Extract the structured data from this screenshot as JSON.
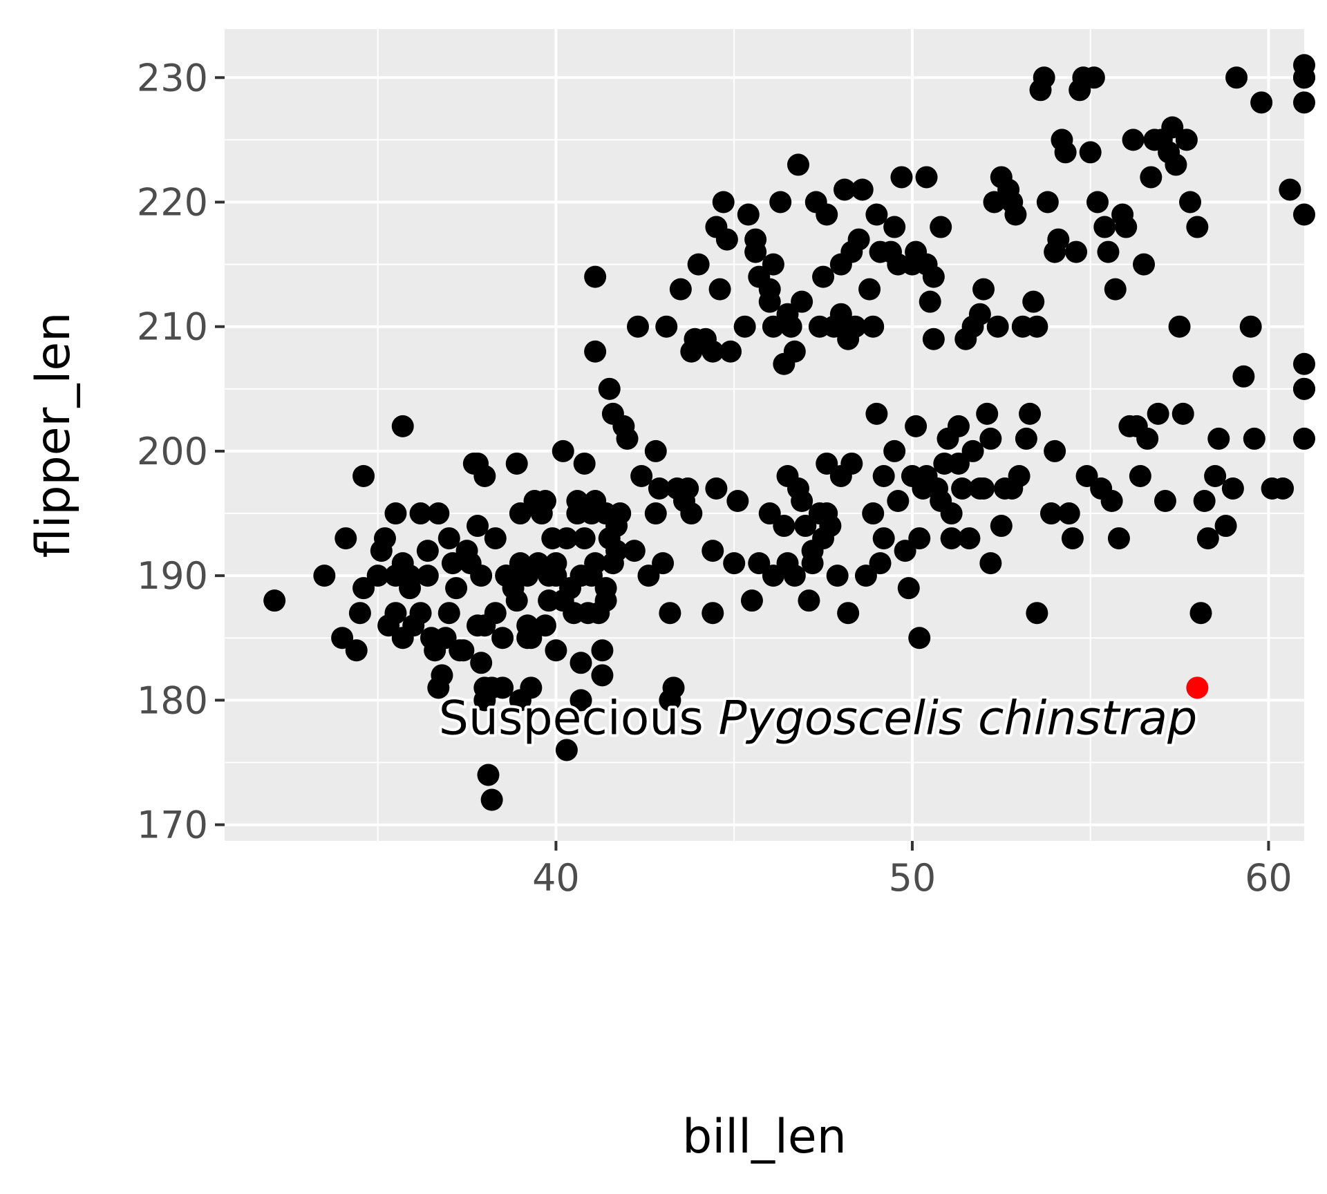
{
  "chart_data": {
    "type": "scatter",
    "title": "",
    "xlabel": "bill_len",
    "ylabel": "flipper_len",
    "xlim": [
      30.7,
      61.0
    ],
    "ylim": [
      168.7,
      233.9
    ],
    "x_ticks": [
      40,
      50,
      60
    ],
    "y_ticks": [
      170,
      180,
      190,
      200,
      210,
      220,
      230
    ],
    "grid": true,
    "background": "#ebebeb",
    "grid_color": "#ffffff",
    "point_color": "#000000",
    "highlight_color": "#ff0000",
    "points": [
      [
        32.1,
        188
      ],
      [
        33.5,
        190
      ],
      [
        34.0,
        185
      ],
      [
        34.1,
        193
      ],
      [
        34.4,
        184
      ],
      [
        34.5,
        187
      ],
      [
        34.6,
        198
      ],
      [
        34.6,
        189
      ],
      [
        35.0,
        190
      ],
      [
        35.1,
        192
      ],
      [
        35.2,
        193
      ],
      [
        35.3,
        186
      ],
      [
        35.5,
        187
      ],
      [
        35.5,
        195
      ],
      [
        35.7,
        185
      ],
      [
        35.7,
        202
      ],
      [
        35.7,
        191
      ],
      [
        35.9,
        189
      ],
      [
        35.9,
        190
      ],
      [
        36.0,
        186
      ],
      [
        36.2,
        187
      ],
      [
        36.2,
        195
      ],
      [
        36.4,
        190
      ],
      [
        36.6,
        184
      ],
      [
        36.7,
        195
      ],
      [
        36.7,
        181
      ],
      [
        36.8,
        182
      ],
      [
        36.9,
        185
      ],
      [
        37.0,
        187
      ],
      [
        37.0,
        193
      ],
      [
        37.2,
        189
      ],
      [
        37.3,
        184
      ],
      [
        37.5,
        192
      ],
      [
        37.6,
        191
      ],
      [
        37.7,
        199
      ],
      [
        37.8,
        199
      ],
      [
        37.8,
        194
      ],
      [
        37.8,
        186
      ],
      [
        37.9,
        183
      ],
      [
        37.9,
        190
      ],
      [
        38.0,
        198
      ],
      [
        38.0,
        181
      ],
      [
        38.0,
        180
      ],
      [
        38.1,
        174
      ],
      [
        38.2,
        172
      ],
      [
        38.3,
        193
      ],
      [
        38.3,
        187
      ],
      [
        38.5,
        185
      ],
      [
        38.5,
        181
      ],
      [
        38.6,
        190
      ],
      [
        38.8,
        189
      ],
      [
        38.9,
        199
      ],
      [
        38.9,
        188
      ],
      [
        39.0,
        191
      ],
      [
        39.0,
        195
      ],
      [
        39.0,
        180
      ],
      [
        39.2,
        185
      ],
      [
        39.2,
        186
      ],
      [
        39.2,
        190
      ],
      [
        39.3,
        181
      ],
      [
        39.4,
        196
      ],
      [
        39.5,
        191
      ],
      [
        39.6,
        195
      ],
      [
        39.7,
        186
      ],
      [
        39.7,
        196
      ],
      [
        39.8,
        188
      ],
      [
        39.9,
        193
      ],
      [
        40.0,
        191
      ],
      [
        40.0,
        190
      ],
      [
        40.0,
        184
      ],
      [
        40.2,
        188
      ],
      [
        40.2,
        200
      ],
      [
        40.3,
        193
      ],
      [
        40.3,
        176
      ],
      [
        40.5,
        187
      ],
      [
        40.6,
        195
      ],
      [
        40.6,
        196
      ],
      [
        40.7,
        183
      ],
      [
        40.7,
        180
      ],
      [
        40.8,
        199
      ],
      [
        40.8,
        193
      ],
      [
        40.9,
        187
      ],
      [
        41.0,
        195
      ],
      [
        41.0,
        190
      ],
      [
        41.1,
        191
      ],
      [
        41.1,
        208
      ],
      [
        41.1,
        214
      ],
      [
        41.2,
        187
      ],
      [
        41.3,
        184
      ],
      [
        41.3,
        182
      ],
      [
        41.4,
        189
      ],
      [
        41.4,
        188
      ],
      [
        41.5,
        205
      ],
      [
        41.5,
        193
      ],
      [
        41.6,
        203
      ],
      [
        41.7,
        194
      ],
      [
        41.7,
        192
      ],
      [
        41.8,
        195
      ],
      [
        41.9,
        202
      ],
      [
        42.0,
        201
      ],
      [
        42.2,
        192
      ],
      [
        42.3,
        210
      ],
      [
        42.4,
        198
      ],
      [
        42.6,
        190
      ],
      [
        42.8,
        200
      ],
      [
        42.8,
        195
      ],
      [
        42.9,
        197
      ],
      [
        43.0,
        191
      ],
      [
        43.1,
        210
      ],
      [
        43.2,
        187
      ],
      [
        43.2,
        180
      ],
      [
        43.3,
        181
      ],
      [
        43.4,
        197
      ],
      [
        43.5,
        213
      ],
      [
        43.6,
        196
      ],
      [
        43.7,
        197
      ],
      [
        43.8,
        195
      ],
      [
        43.8,
        208
      ],
      [
        43.9,
        209
      ],
      [
        44.0,
        215
      ],
      [
        44.2,
        209
      ],
      [
        44.4,
        187
      ],
      [
        44.4,
        192
      ],
      [
        44.4,
        208
      ],
      [
        44.5,
        197
      ],
      [
        44.5,
        218
      ],
      [
        44.6,
        213
      ],
      [
        44.7,
        220
      ],
      [
        44.8,
        217
      ],
      [
        44.9,
        208
      ],
      [
        45.1,
        196
      ],
      [
        45.3,
        210
      ],
      [
        45.4,
        219
      ],
      [
        45.6,
        216
      ],
      [
        45.6,
        217
      ],
      [
        45.7,
        214
      ],
      [
        46.0,
        212
      ],
      [
        46.0,
        213
      ],
      [
        46.1,
        210
      ],
      [
        46.1,
        215
      ],
      [
        46.3,
        220
      ],
      [
        46.4,
        207
      ],
      [
        46.5,
        211
      ],
      [
        46.5,
        198
      ],
      [
        46.5,
        191
      ],
      [
        46.6,
        210
      ],
      [
        46.7,
        208
      ],
      [
        46.8,
        223
      ],
      [
        46.9,
        212
      ],
      [
        46.9,
        196
      ],
      [
        47.0,
        194
      ],
      [
        47.1,
        188
      ],
      [
        47.2,
        191
      ],
      [
        47.3,
        220
      ],
      [
        47.4,
        210
      ],
      [
        47.4,
        195
      ],
      [
        47.5,
        214
      ],
      [
        47.5,
        193
      ],
      [
        47.6,
        219
      ],
      [
        47.6,
        195
      ],
      [
        47.7,
        194
      ],
      [
        47.8,
        210
      ],
      [
        47.9,
        190
      ],
      [
        48.0,
        211
      ],
      [
        48.0,
        215
      ],
      [
        48.1,
        221
      ],
      [
        48.2,
        209
      ],
      [
        48.2,
        187
      ],
      [
        48.3,
        216
      ],
      [
        48.4,
        210
      ],
      [
        48.5,
        217
      ],
      [
        48.6,
        221
      ],
      [
        48.7,
        190
      ],
      [
        48.8,
        213
      ],
      [
        48.9,
        210
      ],
      [
        49.0,
        219
      ],
      [
        49.1,
        191
      ],
      [
        49.1,
        216
      ],
      [
        49.2,
        193
      ],
      [
        49.4,
        216
      ],
      [
        49.5,
        218
      ],
      [
        49.6,
        215
      ],
      [
        49.7,
        222
      ],
      [
        49.8,
        192
      ],
      [
        49.9,
        189
      ],
      [
        50.0,
        215
      ],
      [
        50.1,
        216
      ],
      [
        50.2,
        185
      ],
      [
        50.4,
        222
      ],
      [
        50.4,
        215
      ],
      [
        50.5,
        212
      ],
      [
        50.6,
        214
      ],
      [
        50.6,
        209
      ],
      [
        50.8,
        218
      ],
      [
        50.9,
        199
      ],
      [
        51.1,
        195
      ],
      [
        51.3,
        199
      ],
      [
        51.5,
        209
      ],
      [
        51.7,
        210
      ],
      [
        51.9,
        211
      ],
      [
        52.0,
        213
      ],
      [
        52.1,
        203
      ],
      [
        52.2,
        191
      ],
      [
        52.3,
        220
      ],
      [
        52.4,
        210
      ],
      [
        52.5,
        222
      ],
      [
        52.7,
        221
      ],
      [
        52.8,
        220
      ],
      [
        52.9,
        219
      ],
      [
        53.1,
        210
      ],
      [
        53.3,
        203
      ],
      [
        53.4,
        212
      ],
      [
        53.5,
        210
      ],
      [
        53.6,
        229
      ],
      [
        53.7,
        230
      ],
      [
        53.8,
        220
      ],
      [
        53.9,
        195
      ],
      [
        54.0,
        216
      ],
      [
        54.0,
        200
      ],
      [
        54.1,
        217
      ],
      [
        54.2,
        225
      ],
      [
        54.3,
        224
      ],
      [
        54.4,
        195
      ],
      [
        54.5,
        193
      ],
      [
        54.6,
        216
      ],
      [
        54.7,
        229
      ],
      [
        54.8,
        230
      ],
      [
        54.9,
        198
      ],
      [
        55.0,
        224
      ],
      [
        55.1,
        230
      ],
      [
        55.2,
        220
      ],
      [
        55.3,
        197
      ],
      [
        55.4,
        218
      ],
      [
        55.5,
        216
      ],
      [
        55.6,
        196
      ],
      [
        55.7,
        213
      ],
      [
        55.8,
        193
      ],
      [
        55.9,
        219
      ],
      [
        56.0,
        218
      ],
      [
        56.1,
        202
      ],
      [
        56.2,
        225
      ],
      [
        56.3,
        202
      ],
      [
        56.4,
        198
      ],
      [
        56.5,
        215
      ],
      [
        56.6,
        201
      ],
      [
        56.7,
        222
      ],
      [
        56.8,
        225
      ],
      [
        56.9,
        203
      ],
      [
        57.0,
        225
      ],
      [
        57.1,
        196
      ],
      [
        57.2,
        224
      ],
      [
        57.3,
        226
      ],
      [
        57.4,
        223
      ],
      [
        57.5,
        210
      ],
      [
        57.6,
        203
      ],
      [
        57.7,
        225
      ],
      [
        57.8,
        220
      ],
      [
        58.0,
        218
      ],
      [
        58.1,
        187
      ],
      [
        58.2,
        196
      ],
      [
        58.3,
        193
      ],
      [
        58.5,
        198
      ],
      [
        58.6,
        201
      ],
      [
        58.8,
        194
      ],
      [
        59.0,
        197
      ],
      [
        59.1,
        230
      ],
      [
        59.3,
        206
      ],
      [
        59.5,
        210
      ],
      [
        59.6,
        201
      ],
      [
        59.8,
        228
      ],
      [
        60.1,
        197
      ],
      [
        60.4,
        197
      ],
      [
        60.6,
        221
      ],
      [
        61.4,
        205
      ],
      [
        61.7,
        219
      ],
      [
        62.4,
        205
      ],
      [
        62.8,
        201
      ],
      [
        63.2,
        231
      ],
      [
        63.5,
        230
      ],
      [
        63.9,
        207
      ],
      [
        64.2,
        228
      ],
      [
        64.8,
        230
      ],
      [
        35.5,
        190
      ],
      [
        36.4,
        192
      ],
      [
        37.1,
        191
      ],
      [
        38.0,
        186
      ],
      [
        38.6,
        190
      ],
      [
        39.3,
        185
      ],
      [
        39.8,
        190
      ],
      [
        40.4,
        189
      ],
      [
        41.1,
        196
      ],
      [
        41.4,
        195
      ],
      [
        36.5,
        185
      ],
      [
        37.4,
        184
      ],
      [
        38.2,
        181
      ],
      [
        39.0,
        190
      ],
      [
        40.7,
        190
      ],
      [
        41.6,
        191
      ],
      [
        45.0,
        191
      ],
      [
        45.5,
        188
      ],
      [
        45.7,
        191
      ],
      [
        46.0,
        195
      ],
      [
        46.1,
        190
      ],
      [
        46.4,
        194
      ],
      [
        46.7,
        190
      ],
      [
        46.8,
        197
      ],
      [
        47.2,
        192
      ],
      [
        47.6,
        199
      ],
      [
        48.0,
        198
      ],
      [
        48.3,
        199
      ],
      [
        49.0,
        203
      ],
      [
        49.6,
        196
      ],
      [
        50.0,
        198
      ],
      [
        50.3,
        197
      ],
      [
        50.8,
        196
      ],
      [
        51.0,
        201
      ],
      [
        51.4,
        197
      ],
      [
        51.6,
        193
      ],
      [
        52.0,
        197
      ],
      [
        52.5,
        194
      ],
      [
        52.8,
        197
      ],
      [
        53.0,
        198
      ],
      [
        53.2,
        201
      ],
      [
        50.2,
        193
      ],
      [
        50.4,
        198
      ],
      [
        51.3,
        202
      ],
      [
        51.7,
        200
      ],
      [
        51.1,
        193
      ],
      [
        50.7,
        197
      ],
      [
        50.1,
        202
      ],
      [
        49.5,
        200
      ],
      [
        49.2,
        198
      ],
      [
        48.9,
        195
      ],
      [
        51.9,
        197
      ],
      [
        52.2,
        201
      ],
      [
        52.6,
        197
      ],
      [
        53.5,
        187
      ]
    ],
    "highlight_point": [
      58.0,
      181
    ],
    "annotation": {
      "text_plain": "Suspecious ",
      "text_italic": "Pygoscelis chinstrap",
      "x": 58.0,
      "y": 178.5,
      "anchor": "end"
    }
  }
}
